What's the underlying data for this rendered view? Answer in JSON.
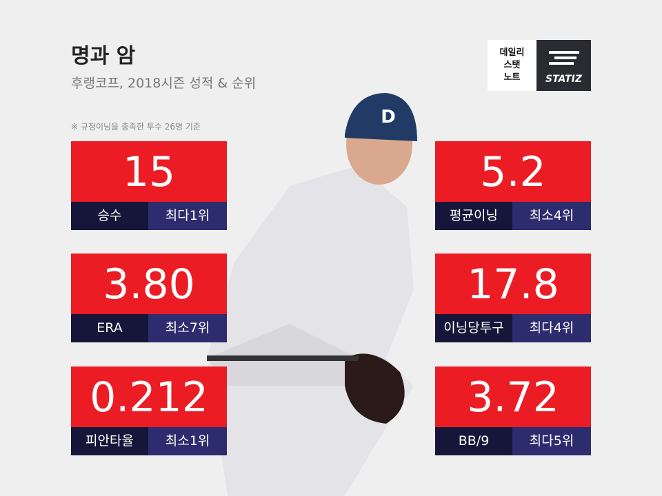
{
  "header": {
    "title": "명과 암",
    "subtitle": "후랭코프, 2018시즌 성적 & 순위",
    "note": "※ 규정이닝을 충족한 투수 26명 기준"
  },
  "logo": {
    "lines": [
      "데일리",
      "스탯",
      "노트"
    ],
    "brand": "STATIZ"
  },
  "stats": [
    {
      "value": "15",
      "label": "승수",
      "rank": "최다1위"
    },
    {
      "value": "3.80",
      "label": "ERA",
      "rank": "최소7위"
    },
    {
      "value": "0.212",
      "label": "피안타율",
      "rank": "최소1위"
    },
    {
      "value": "5.2",
      "label": "평균이닝",
      "rank": "최소4위"
    },
    {
      "value": "17.8",
      "label": "이닝당투구",
      "rank": "최다4위"
    },
    {
      "value": "3.72",
      "label": "BB/9",
      "rank": "최다5위"
    }
  ]
}
